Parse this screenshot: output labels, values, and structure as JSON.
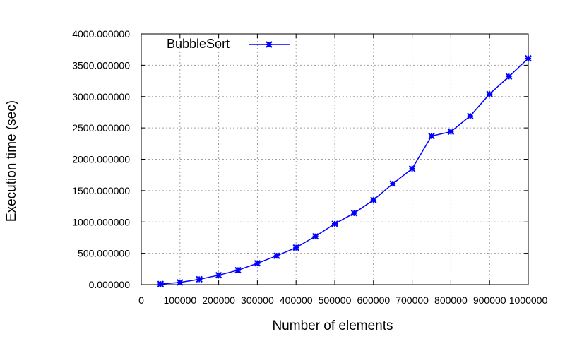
{
  "chart_data": {
    "type": "line",
    "title": "",
    "xlabel": "Number of elements",
    "ylabel": "Execution time (sec)",
    "xlim": [
      0,
      1000000
    ],
    "ylim": [
      0,
      4000
    ],
    "grid": true,
    "legend_position": "top-left",
    "x_ticks": [
      0,
      100000,
      200000,
      300000,
      400000,
      500000,
      600000,
      700000,
      800000,
      900000,
      1000000
    ],
    "x_tick_labels": [
      "0",
      "100000",
      "200000",
      "300000",
      "400000",
      "500000",
      "600000",
      "700000",
      "800000",
      "900000",
      "1000000"
    ],
    "y_ticks": [
      0,
      500,
      1000,
      1500,
      2000,
      2500,
      3000,
      3500,
      4000
    ],
    "y_tick_labels": [
      "0.000000",
      "500.000000",
      "1000.000000",
      "1500.000000",
      "2000.000000",
      "2500.000000",
      "3000.000000",
      "3500.000000",
      "4000.000000"
    ],
    "series": [
      {
        "name": "BubbleSort",
        "color": "#0000ff",
        "marker": "asterisk",
        "x": [
          50000,
          100000,
          150000,
          200000,
          250000,
          300000,
          350000,
          400000,
          450000,
          500000,
          550000,
          600000,
          650000,
          700000,
          750000,
          800000,
          850000,
          900000,
          950000,
          1000000
        ],
        "y": [
          10,
          35,
          85,
          150,
          230,
          340,
          460,
          590,
          770,
          970,
          1140,
          1350,
          1610,
          1850,
          2370,
          2440,
          2690,
          3040,
          3320,
          3610
        ]
      }
    ]
  }
}
